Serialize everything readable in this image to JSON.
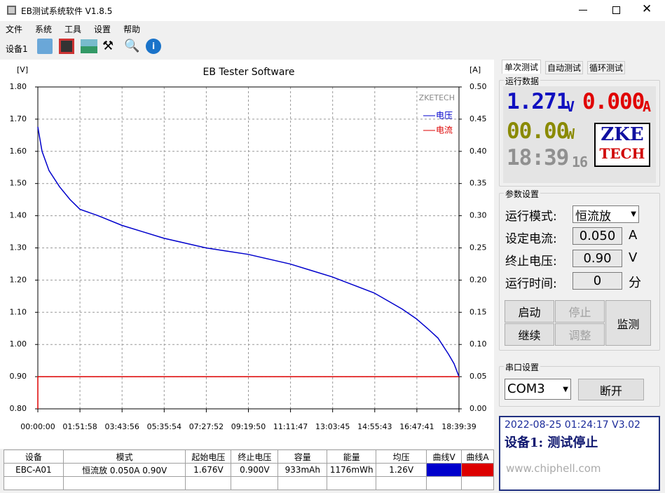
{
  "window": {
    "title": "EB测试系统软件 V1.8.5"
  },
  "menu": [
    "文件",
    "系统",
    "工具",
    "设置",
    "帮助"
  ],
  "toolbar": {
    "device": "设备1"
  },
  "chart_data": {
    "type": "line",
    "title": "EB Tester Software",
    "ylabel": "[V]",
    "y2label": "[A]",
    "annotation": "ZKETECH",
    "xlim": [
      0,
      67179
    ],
    "xticks": [
      {
        "value": 0,
        "label": "00:00:00"
      },
      {
        "value": 6718,
        "label": "01:51:58"
      },
      {
        "value": 13436,
        "label": "03:43:56"
      },
      {
        "value": 20154,
        "label": "05:35:54"
      },
      {
        "value": 26872,
        "label": "07:27:52"
      },
      {
        "value": 33590,
        "label": "09:19:50"
      },
      {
        "value": 40307,
        "label": "11:11:47"
      },
      {
        "value": 47025,
        "label": "13:03:45"
      },
      {
        "value": 53743,
        "label": "14:55:43"
      },
      {
        "value": 60461,
        "label": "16:47:41"
      },
      {
        "value": 67179,
        "label": "18:39:39"
      }
    ],
    "ylim": [
      0.8,
      1.8
    ],
    "yticks": [
      {
        "value": 0.8,
        "label": "0.80"
      },
      {
        "value": 0.9,
        "label": "0.90"
      },
      {
        "value": 1.0,
        "label": "1.00"
      },
      {
        "value": 1.1,
        "label": "1.10"
      },
      {
        "value": 1.2,
        "label": "1.20"
      },
      {
        "value": 1.3,
        "label": "1.30"
      },
      {
        "value": 1.4,
        "label": "1.40"
      },
      {
        "value": 1.5,
        "label": "1.50"
      },
      {
        "value": 1.6,
        "label": "1.60"
      },
      {
        "value": 1.7,
        "label": "1.70"
      },
      {
        "value": 1.8,
        "label": "1.80"
      }
    ],
    "y2lim": [
      0,
      0.5
    ],
    "y2ticks": [
      {
        "value": 0,
        "label": "0.00"
      },
      {
        "value": 0.05,
        "label": "0.05"
      },
      {
        "value": 0.1,
        "label": "0.10"
      },
      {
        "value": 0.15,
        "label": "0.15"
      },
      {
        "value": 0.2,
        "label": "0.20"
      },
      {
        "value": 0.25,
        "label": "0.25"
      },
      {
        "value": 0.3,
        "label": "0.30"
      },
      {
        "value": 0.35,
        "label": "0.35"
      },
      {
        "value": 0.4,
        "label": "0.40"
      },
      {
        "value": 0.45,
        "label": "0.45"
      },
      {
        "value": 0.5,
        "label": "0.50"
      }
    ],
    "grid": true,
    "legend": "upper right",
    "series": [
      {
        "name": "电压",
        "color": "#0000cc",
        "x": [
          0,
          224,
          671,
          1788,
          3465,
          5142,
          6718,
          9613,
          13414,
          16767,
          20118,
          23474,
          26827,
          30180,
          33534,
          36887,
          40241,
          43594,
          46948,
          50301,
          53654,
          55890,
          58126,
          60361,
          62150,
          63826,
          65503,
          66397,
          67179
        ],
        "values": [
          1.676,
          1.65,
          1.6,
          1.54,
          1.49,
          1.45,
          1.42,
          1.4,
          1.37,
          1.35,
          1.33,
          1.315,
          1.3,
          1.29,
          1.28,
          1.265,
          1.25,
          1.23,
          1.21,
          1.185,
          1.16,
          1.135,
          1.11,
          1.08,
          1.05,
          1.02,
          0.97,
          0.94,
          0.9
        ]
      },
      {
        "name": "电流",
        "color": "#dd0000",
        "axis": "y2",
        "x": [
          0,
          0,
          67179
        ],
        "values": [
          0,
          0.05,
          0.05
        ]
      }
    ]
  },
  "table": {
    "headers": [
      "设备",
      "模式",
      "起始电压",
      "终止电压",
      "容量",
      "能量",
      "均压",
      "曲线V",
      "曲线A"
    ],
    "rows": [
      [
        "EBC-A01",
        "恒流放  0.050A  0.90V",
        "1.676V",
        "0.900V",
        "933mAh",
        "1176mWh",
        "1.26V"
      ]
    ]
  },
  "panel": {
    "tabs": [
      "单次测试",
      "自动测试",
      "循环测试"
    ],
    "run_data": {
      "title": "运行数据",
      "voltage": "1.271",
      "voltage_unit": "V",
      "current": "0.000",
      "current_unit": "A",
      "power": "00.00",
      "power_unit": "W",
      "time": "18:39",
      "seconds": "16",
      "logo": [
        "ZKE",
        "TECH"
      ]
    },
    "params": {
      "title": "参数设置",
      "rows": [
        {
          "label": "运行模式:",
          "value": "恒流放"
        },
        {
          "label": "设定电流:",
          "value": "0.050",
          "unit": "A"
        },
        {
          "label": "终止电压:",
          "value": "0.90",
          "unit": "V"
        },
        {
          "label": "运行时间:",
          "value": "0",
          "unit": "分"
        }
      ]
    },
    "buttons": [
      "启动",
      "停止",
      "继续",
      "调整",
      "监测"
    ],
    "serial": {
      "title": "串口设置",
      "port": "COM3",
      "button": "断开"
    },
    "status": {
      "line1": "2022-08-25 01:24:17  V3.02",
      "line2": "设备1: 测试停止"
    },
    "watermark": "www.chiphell.com"
  }
}
